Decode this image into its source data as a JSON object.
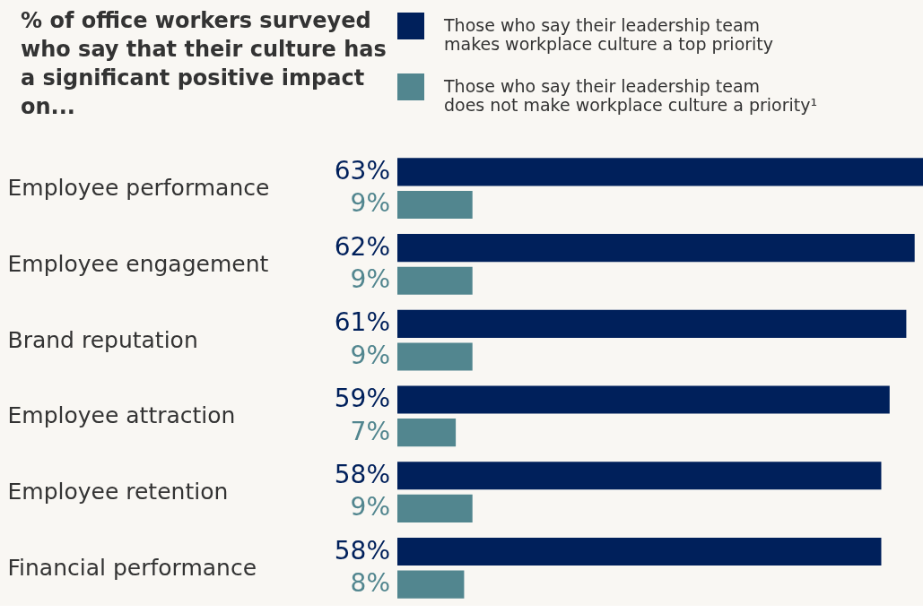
{
  "chart_data": {
    "type": "bar",
    "orientation": "horizontal",
    "title": "% of office workers surveyed who say that their culture has a significant positive impact on...",
    "categories": [
      "Employee performance",
      "Employee engagement",
      "Brand reputation",
      "Employee attraction",
      "Employee retention",
      "Financial performance"
    ],
    "series": [
      {
        "name": "Those who say their leadership team makes workplace culture a top priority",
        "color": "#00205b",
        "values": [
          63,
          62,
          61,
          59,
          58,
          58
        ],
        "value_labels": [
          "63%",
          "62%",
          "61%",
          "59%",
          "58%",
          "58%"
        ]
      },
      {
        "name": "Those who say their leadership team does not make workplace culture a priority¹",
        "color": "#52868f",
        "values": [
          9,
          9,
          9,
          7,
          9,
          8
        ],
        "value_labels": [
          "9%",
          "9%",
          "9%",
          "7%",
          "9%",
          "8%"
        ]
      }
    ],
    "legend": "top",
    "grid": false
  }
}
